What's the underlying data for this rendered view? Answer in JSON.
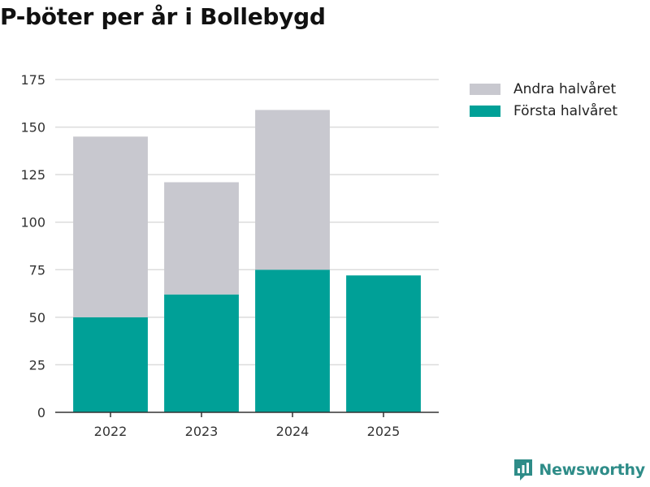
{
  "chart_data": {
    "type": "bar",
    "stacked": true,
    "title": "P-böter per år i Bollebygd",
    "xlabel": "",
    "ylabel": "",
    "categories": [
      "2022",
      "2023",
      "2024",
      "2025"
    ],
    "series": [
      {
        "name": "Första halvåret",
        "color": "#00a097",
        "values": [
          50,
          62,
          75,
          72
        ]
      },
      {
        "name": "Andra halvåret",
        "color": "#c8c8cf",
        "values": [
          95,
          59,
          84,
          0
        ]
      }
    ],
    "ylim": [
      0,
      175
    ],
    "yticks": [
      0,
      25,
      50,
      75,
      100,
      125,
      150,
      175
    ],
    "grid": true,
    "legend_position": "top-right"
  },
  "legend": [
    {
      "label": "Andra halvåret",
      "color": "#c8c8cf"
    },
    {
      "label": "Första halvåret",
      "color": "#00a097"
    }
  ],
  "branding": {
    "name": "Newsworthy",
    "icon": "newsworthy-logo-icon",
    "color": "#2e8c88"
  }
}
